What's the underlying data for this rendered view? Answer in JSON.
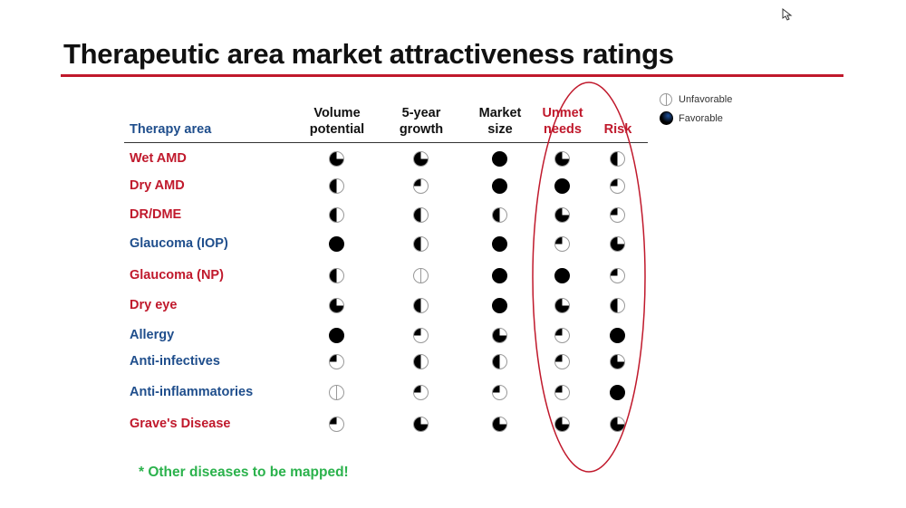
{
  "title": "Therapeutic area market attractiveness ratings",
  "colors": {
    "red": "#c0192c",
    "blue": "#1f4e8c",
    "green": "#2bb24c",
    "ball": "#000000"
  },
  "legend": [
    {
      "icon": "harvey-ball-empty",
      "label": "Unfavorable"
    },
    {
      "icon": "harvey-ball-full",
      "label": "Favorable"
    }
  ],
  "headers": {
    "therapy_area": "Therapy area",
    "columns": [
      {
        "line1": "Volume",
        "line2": "potential",
        "color": "#111111"
      },
      {
        "line1": "5-year",
        "line2": "growth",
        "color": "#111111"
      },
      {
        "line1": "Market",
        "line2": "size",
        "color": "#111111"
      },
      {
        "line1": "Unmet",
        "line2": "needs",
        "color": "#c0192c"
      },
      {
        "line1": "Risk",
        "line2": "",
        "color": "#c0192c"
      }
    ]
  },
  "rows": [
    {
      "label": "Wet AMD",
      "color": "#c0192c",
      "ratings": [
        0.75,
        0.75,
        1,
        0.75,
        0.5
      ]
    },
    {
      "label": "Dry AMD",
      "color": "#c0192c",
      "ratings": [
        0.5,
        0.25,
        1,
        1,
        0.25
      ]
    },
    {
      "label": "DR/DME",
      "color": "#c0192c",
      "ratings": [
        0.5,
        0.5,
        0.5,
        0.75,
        0.25
      ]
    },
    {
      "label": "Glaucoma (IOP)",
      "color": "#1f4e8c",
      "ratings": [
        1,
        0.5,
        1,
        0.25,
        0.75
      ]
    },
    {
      "label": "Glaucoma (NP)",
      "color": "#c0192c",
      "ratings": [
        0.5,
        0,
        1,
        1,
        0.25
      ]
    },
    {
      "label": "Dry eye",
      "color": "#c0192c",
      "ratings": [
        0.75,
        0.5,
        1,
        0.75,
        0.5
      ]
    },
    {
      "label": "Allergy",
      "color": "#1f4e8c",
      "ratings": [
        1,
        0.25,
        0.75,
        0.25,
        1
      ]
    },
    {
      "label": "Anti-infectives",
      "color": "#1f4e8c",
      "ratings": [
        0.25,
        0.5,
        0.5,
        0.25,
        0.75
      ]
    },
    {
      "label": "Anti-inflammatories",
      "color": "#1f4e8c",
      "ratings": [
        0,
        0.25,
        0.25,
        0.25,
        1
      ]
    },
    {
      "label": "Grave's Disease",
      "color": "#c0192c",
      "ratings": [
        0.25,
        0.75,
        0.75,
        0.75,
        0.75
      ]
    }
  ],
  "footnote": "* Other diseases to be mapped!"
}
